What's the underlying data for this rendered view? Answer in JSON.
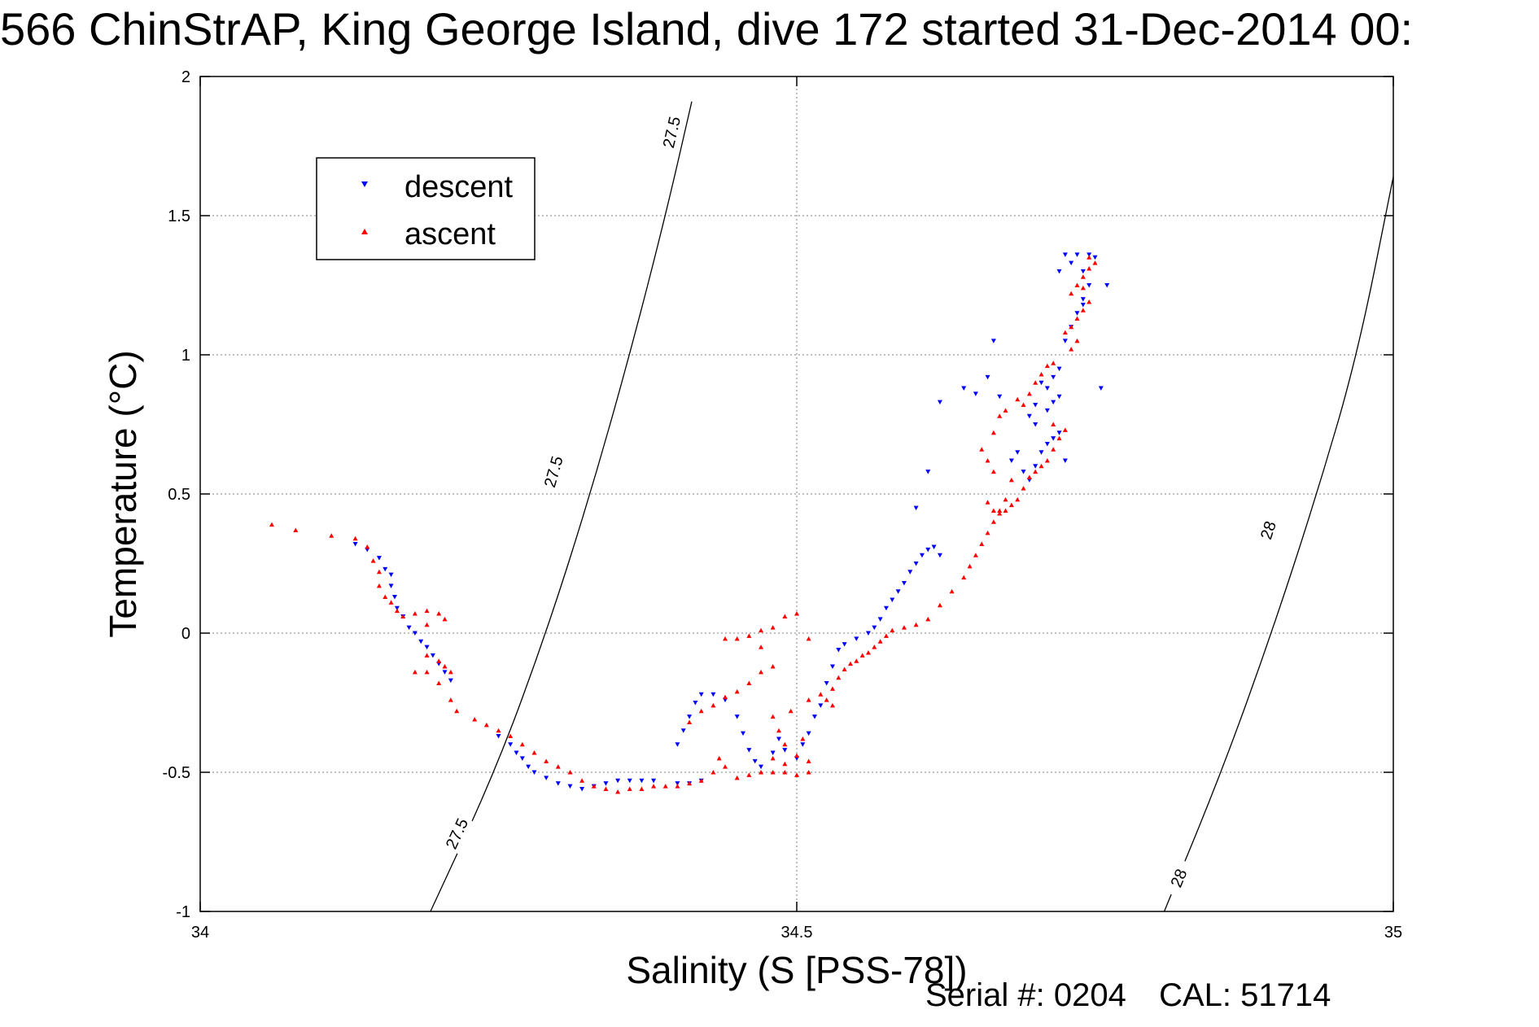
{
  "title": "566 ChinStrAP, King George Island, dive 172 started 31-Dec-2014 00:",
  "footer": {
    "serial_label": "Serial #:",
    "serial_value": "0204",
    "cal_label": "CAL:",
    "cal_value": "51714"
  },
  "chart_data": {
    "type": "scatter",
    "title": "566 ChinStrAP, King George Island, dive 172 started 31-Dec-2014 00:",
    "xlabel": "Salinity (S [PSS-78])",
    "ylabel": "Temperature (°C)",
    "xlim": [
      34,
      35
    ],
    "ylim": [
      -1,
      2
    ],
    "xticks": [
      "34",
      "34.5",
      "35"
    ],
    "yticks": [
      "-1",
      "-0.5",
      "0",
      "0.5",
      "1",
      "1.5",
      "2"
    ],
    "xtick_values": [
      34,
      34.5,
      35
    ],
    "ytick_values": [
      -1,
      -0.5,
      0,
      0.5,
      1,
      1.5,
      2
    ],
    "grid": true,
    "legend": "top-left",
    "colors": {
      "descent": "#0000ff",
      "ascent": "#ff0000",
      "contour": "#000000",
      "grid": "#808080"
    },
    "series": [
      {
        "name": "descent",
        "marker": "triangle-down",
        "color": "#0000ff",
        "points": [
          [
            34.13,
            0.32
          ],
          [
            34.14,
            0.3
          ],
          [
            34.15,
            0.27
          ],
          [
            34.155,
            0.23
          ],
          [
            34.16,
            0.21
          ],
          [
            34.16,
            0.17
          ],
          [
            34.163,
            0.13
          ],
          [
            34.165,
            0.09
          ],
          [
            34.17,
            0.06
          ],
          [
            34.175,
            0.02
          ],
          [
            34.18,
            0.0
          ],
          [
            34.185,
            -0.03
          ],
          [
            34.19,
            -0.05
          ],
          [
            34.195,
            -0.08
          ],
          [
            34.2,
            -0.11
          ],
          [
            34.205,
            -0.14
          ],
          [
            34.21,
            -0.17
          ],
          [
            34.25,
            -0.37
          ],
          [
            34.26,
            -0.4
          ],
          [
            34.265,
            -0.43
          ],
          [
            34.27,
            -0.45
          ],
          [
            34.275,
            -0.48
          ],
          [
            34.28,
            -0.5
          ],
          [
            34.29,
            -0.52
          ],
          [
            34.3,
            -0.54
          ],
          [
            34.31,
            -0.55
          ],
          [
            34.32,
            -0.56
          ],
          [
            34.33,
            -0.55
          ],
          [
            34.34,
            -0.54
          ],
          [
            34.35,
            -0.53
          ],
          [
            34.36,
            -0.53
          ],
          [
            34.37,
            -0.53
          ],
          [
            34.38,
            -0.53
          ],
          [
            34.4,
            -0.54
          ],
          [
            34.41,
            -0.54
          ],
          [
            34.42,
            -0.53
          ],
          [
            34.4,
            -0.4
          ],
          [
            34.405,
            -0.35
          ],
          [
            34.41,
            -0.3
          ],
          [
            34.415,
            -0.25
          ],
          [
            34.42,
            -0.22
          ],
          [
            34.43,
            -0.22
          ],
          [
            34.44,
            -0.24
          ],
          [
            34.45,
            -0.3
          ],
          [
            34.455,
            -0.36
          ],
          [
            34.46,
            -0.42
          ],
          [
            34.465,
            -0.46
          ],
          [
            34.47,
            -0.48
          ],
          [
            34.48,
            -0.43
          ],
          [
            34.485,
            -0.38
          ],
          [
            34.49,
            -0.42
          ],
          [
            34.5,
            -0.45
          ],
          [
            34.505,
            -0.4
          ],
          [
            34.51,
            -0.36
          ],
          [
            34.515,
            -0.3
          ],
          [
            34.52,
            -0.26
          ],
          [
            34.525,
            -0.18
          ],
          [
            34.53,
            -0.12
          ],
          [
            34.535,
            -0.06
          ],
          [
            34.54,
            -0.04
          ],
          [
            34.55,
            -0.02
          ],
          [
            34.56,
            0.0
          ],
          [
            34.565,
            0.02
          ],
          [
            34.57,
            0.05
          ],
          [
            34.575,
            0.09
          ],
          [
            34.58,
            0.12
          ],
          [
            34.585,
            0.15
          ],
          [
            34.59,
            0.18
          ],
          [
            34.595,
            0.22
          ],
          [
            34.6,
            0.25
          ],
          [
            34.605,
            0.28
          ],
          [
            34.61,
            0.3
          ],
          [
            34.615,
            0.31
          ],
          [
            34.62,
            0.28
          ],
          [
            34.6,
            0.45
          ],
          [
            34.61,
            0.58
          ],
          [
            34.62,
            0.83
          ],
          [
            34.64,
            0.88
          ],
          [
            34.65,
            0.86
          ],
          [
            34.66,
            0.92
          ],
          [
            34.67,
            0.85
          ],
          [
            34.665,
            1.05
          ],
          [
            34.68,
            0.62
          ],
          [
            34.685,
            0.65
          ],
          [
            34.69,
            0.58
          ],
          [
            34.695,
            0.55
          ],
          [
            34.7,
            0.6
          ],
          [
            34.705,
            0.65
          ],
          [
            34.71,
            0.68
          ],
          [
            34.715,
            0.7
          ],
          [
            34.72,
            0.72
          ],
          [
            34.7,
            0.75
          ],
          [
            34.71,
            0.8
          ],
          [
            34.715,
            0.83
          ],
          [
            34.72,
            0.85
          ],
          [
            34.71,
            0.88
          ],
          [
            34.715,
            0.92
          ],
          [
            34.72,
            0.95
          ],
          [
            34.7,
            0.82
          ],
          [
            34.695,
            0.78
          ],
          [
            34.725,
            0.62
          ],
          [
            34.705,
            0.9
          ],
          [
            34.725,
            1.05
          ],
          [
            34.73,
            1.1
          ],
          [
            34.735,
            1.15
          ],
          [
            34.74,
            1.2
          ],
          [
            34.745,
            1.25
          ],
          [
            34.74,
            1.3
          ],
          [
            34.73,
            1.33
          ],
          [
            34.725,
            1.36
          ],
          [
            34.735,
            1.36
          ],
          [
            34.745,
            1.36
          ],
          [
            34.75,
            1.35
          ],
          [
            34.72,
            1.3
          ],
          [
            34.76,
            1.25
          ],
          [
            34.74,
            1.18
          ],
          [
            34.755,
            0.88
          ]
        ]
      },
      {
        "name": "ascent",
        "marker": "triangle-up",
        "color": "#ff0000",
        "points": [
          [
            34.06,
            0.39
          ],
          [
            34.08,
            0.37
          ],
          [
            34.11,
            0.35
          ],
          [
            34.13,
            0.34
          ],
          [
            34.14,
            0.31
          ],
          [
            34.145,
            0.26
          ],
          [
            34.15,
            0.22
          ],
          [
            34.15,
            0.17
          ],
          [
            34.155,
            0.13
          ],
          [
            34.16,
            0.11
          ],
          [
            34.165,
            0.08
          ],
          [
            34.17,
            0.06
          ],
          [
            34.18,
            0.07
          ],
          [
            34.19,
            0.08
          ],
          [
            34.2,
            0.07
          ],
          [
            34.205,
            0.05
          ],
          [
            34.19,
            0.03
          ],
          [
            34.19,
            -0.08
          ],
          [
            34.2,
            -0.1
          ],
          [
            34.205,
            -0.12
          ],
          [
            34.21,
            -0.14
          ],
          [
            34.19,
            -0.14
          ],
          [
            34.18,
            -0.14
          ],
          [
            34.2,
            -0.18
          ],
          [
            34.21,
            -0.24
          ],
          [
            34.215,
            -0.28
          ],
          [
            34.23,
            -0.31
          ],
          [
            34.24,
            -0.33
          ],
          [
            34.25,
            -0.35
          ],
          [
            34.26,
            -0.37
          ],
          [
            34.27,
            -0.4
          ],
          [
            34.28,
            -0.43
          ],
          [
            34.29,
            -0.46
          ],
          [
            34.3,
            -0.48
          ],
          [
            34.31,
            -0.5
          ],
          [
            34.32,
            -0.53
          ],
          [
            34.33,
            -0.55
          ],
          [
            34.34,
            -0.56
          ],
          [
            34.35,
            -0.57
          ],
          [
            34.36,
            -0.56
          ],
          [
            34.37,
            -0.56
          ],
          [
            34.38,
            -0.55
          ],
          [
            34.39,
            -0.55
          ],
          [
            34.4,
            -0.55
          ],
          [
            34.41,
            -0.54
          ],
          [
            34.42,
            -0.53
          ],
          [
            34.43,
            -0.5
          ],
          [
            34.435,
            -0.45
          ],
          [
            34.44,
            -0.48
          ],
          [
            34.45,
            -0.52
          ],
          [
            34.46,
            -0.51
          ],
          [
            34.47,
            -0.5
          ],
          [
            34.48,
            -0.5
          ],
          [
            34.49,
            -0.5
          ],
          [
            34.5,
            -0.51
          ],
          [
            34.51,
            -0.5
          ],
          [
            34.49,
            -0.47
          ],
          [
            34.48,
            -0.45
          ],
          [
            34.41,
            -0.32
          ],
          [
            34.42,
            -0.28
          ],
          [
            34.43,
            -0.26
          ],
          [
            34.44,
            -0.23
          ],
          [
            34.45,
            -0.21
          ],
          [
            34.46,
            -0.18
          ],
          [
            34.47,
            -0.14
          ],
          [
            34.48,
            -0.12
          ],
          [
            34.47,
            -0.05
          ],
          [
            34.44,
            -0.02
          ],
          [
            34.45,
            -0.02
          ],
          [
            34.46,
            -0.01
          ],
          [
            34.47,
            0.01
          ],
          [
            34.48,
            0.02
          ],
          [
            34.49,
            0.06
          ],
          [
            34.5,
            0.07
          ],
          [
            34.51,
            -0.02
          ],
          [
            34.48,
            -0.3
          ],
          [
            34.485,
            -0.35
          ],
          [
            34.49,
            -0.4
          ],
          [
            34.5,
            -0.44
          ],
          [
            34.51,
            -0.46
          ],
          [
            34.505,
            -0.38
          ],
          [
            34.495,
            -0.28
          ],
          [
            34.51,
            -0.24
          ],
          [
            34.52,
            -0.22
          ],
          [
            34.525,
            -0.24
          ],
          [
            34.53,
            -0.26
          ],
          [
            34.53,
            -0.2
          ],
          [
            34.535,
            -0.16
          ],
          [
            34.54,
            -0.13
          ],
          [
            34.545,
            -0.11
          ],
          [
            34.55,
            -0.1
          ],
          [
            34.555,
            -0.08
          ],
          [
            34.56,
            -0.07
          ],
          [
            34.565,
            -0.05
          ],
          [
            34.57,
            -0.03
          ],
          [
            34.575,
            -0.01
          ],
          [
            34.58,
            0.01
          ],
          [
            34.59,
            0.02
          ],
          [
            34.6,
            0.03
          ],
          [
            34.61,
            0.05
          ],
          [
            34.62,
            0.1
          ],
          [
            34.63,
            0.15
          ],
          [
            34.64,
            0.2
          ],
          [
            34.645,
            0.24
          ],
          [
            34.65,
            0.28
          ],
          [
            34.655,
            0.32
          ],
          [
            34.66,
            0.36
          ],
          [
            34.665,
            0.4
          ],
          [
            34.67,
            0.44
          ],
          [
            34.675,
            0.48
          ],
          [
            34.66,
            0.47
          ],
          [
            34.665,
            0.44
          ],
          [
            34.67,
            0.43
          ],
          [
            34.675,
            0.44
          ],
          [
            34.68,
            0.46
          ],
          [
            34.685,
            0.48
          ],
          [
            34.69,
            0.52
          ],
          [
            34.695,
            0.56
          ],
          [
            34.7,
            0.58
          ],
          [
            34.705,
            0.6
          ],
          [
            34.71,
            0.62
          ],
          [
            34.715,
            0.66
          ],
          [
            34.72,
            0.7
          ],
          [
            34.725,
            0.73
          ],
          [
            34.715,
            0.75
          ],
          [
            34.68,
            0.55
          ],
          [
            34.665,
            0.58
          ],
          [
            34.66,
            0.62
          ],
          [
            34.655,
            0.66
          ],
          [
            34.665,
            0.72
          ],
          [
            34.67,
            0.78
          ],
          [
            34.675,
            0.8
          ],
          [
            34.685,
            0.84
          ],
          [
            34.69,
            0.82
          ],
          [
            34.695,
            0.86
          ],
          [
            34.7,
            0.9
          ],
          [
            34.705,
            0.93
          ],
          [
            34.71,
            0.96
          ],
          [
            34.715,
            0.97
          ],
          [
            34.725,
            1.08
          ],
          [
            34.73,
            1.1
          ],
          [
            34.735,
            1.13
          ],
          [
            34.74,
            1.16
          ],
          [
            34.745,
            1.19
          ],
          [
            34.73,
            1.22
          ],
          [
            34.735,
            1.25
          ],
          [
            34.74,
            1.28
          ],
          [
            34.745,
            1.31
          ],
          [
            34.75,
            1.33
          ],
          [
            34.745,
            1.35
          ],
          [
            34.74,
            1.24
          ],
          [
            34.735,
            1.05
          ],
          [
            34.73,
            1.02
          ]
        ]
      }
    ],
    "contours": [
      {
        "label": "27.5",
        "points": [
          [
            34.193,
            -1.0
          ],
          [
            34.247,
            -0.5
          ],
          [
            34.29,
            0.0
          ],
          [
            34.327,
            0.5
          ],
          [
            34.36,
            1.0
          ],
          [
            34.39,
            1.5
          ],
          [
            34.412,
            1.91
          ]
        ],
        "label_positions": [
          [
            34.215,
            -0.72
          ],
          [
            34.296,
            0.58
          ],
          [
            34.395,
            1.8
          ]
        ]
      },
      {
        "label": "28",
        "points": [
          [
            34.808,
            -1.0
          ],
          [
            34.856,
            -0.5
          ],
          [
            34.898,
            0.0
          ],
          [
            34.936,
            0.5
          ],
          [
            34.97,
            1.0
          ],
          [
            35.0,
            1.64
          ]
        ],
        "label_positions": [
          [
            34.82,
            -0.88
          ],
          [
            34.895,
            0.37
          ]
        ]
      }
    ]
  }
}
